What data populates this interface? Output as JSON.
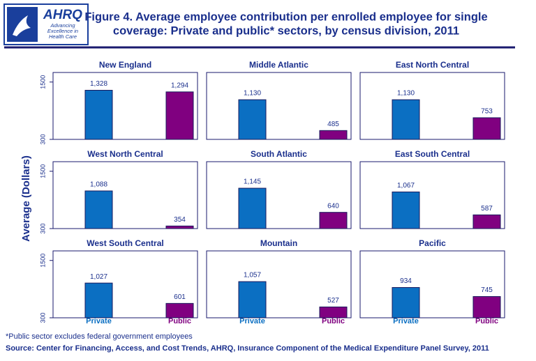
{
  "header": {
    "title": [
      "Figure 4. Average employee contribution per enrolled employee for single",
      "coverage: Private and public* sectors, by census division, 2011"
    ],
    "logo": {
      "name": "AHRQ",
      "tagline": [
        "Advancing",
        "Excellence in",
        "Health Care"
      ]
    }
  },
  "y_label": "Average (Dollars)",
  "categories": [
    "Private",
    "Public"
  ],
  "colors": [
    "#0b6fc2",
    "#800080"
  ],
  "chart_data": [
    {
      "type": "bar",
      "title": "New England",
      "values": [
        1328,
        1294
      ],
      "value_labels": [
        "1,328",
        "1,294"
      ],
      "ylim": [
        300,
        1700
      ],
      "yticks": [
        300,
        1500
      ]
    },
    {
      "type": "bar",
      "title": "Middle Atlantic",
      "values": [
        1130,
        485
      ],
      "value_labels": [
        "1,130",
        "485"
      ],
      "ylim": [
        300,
        1700
      ],
      "yticks": [
        300,
        1500
      ]
    },
    {
      "type": "bar",
      "title": "East North Central",
      "values": [
        1130,
        753
      ],
      "value_labels": [
        "1,130",
        "753"
      ],
      "ylim": [
        300,
        1700
      ],
      "yticks": [
        300,
        1500
      ]
    },
    {
      "type": "bar",
      "title": "West North Central",
      "values": [
        1088,
        354
      ],
      "value_labels": [
        "1,088",
        "354"
      ],
      "ylim": [
        300,
        1700
      ],
      "yticks": [
        300,
        1500
      ]
    },
    {
      "type": "bar",
      "title": "South Atlantic",
      "values": [
        1145,
        640
      ],
      "value_labels": [
        "1,145",
        "640"
      ],
      "ylim": [
        300,
        1700
      ],
      "yticks": [
        300,
        1500
      ]
    },
    {
      "type": "bar",
      "title": "East South Central",
      "values": [
        1067,
        587
      ],
      "value_labels": [
        "1,067",
        "587"
      ],
      "ylim": [
        300,
        1700
      ],
      "yticks": [
        300,
        1500
      ]
    },
    {
      "type": "bar",
      "title": "West South Central",
      "values": [
        1027,
        601
      ],
      "value_labels": [
        "1,027",
        "601"
      ],
      "ylim": [
        300,
        1700
      ],
      "yticks": [
        300,
        1500
      ]
    },
    {
      "type": "bar",
      "title": "Mountain",
      "values": [
        1057,
        527
      ],
      "value_labels": [
        "1,057",
        "527"
      ],
      "ylim": [
        300,
        1700
      ],
      "yticks": [
        300,
        1500
      ]
    },
    {
      "type": "bar",
      "title": "Pacific",
      "values": [
        934,
        745
      ],
      "value_labels": [
        "934",
        "745"
      ],
      "ylim": [
        300,
        1700
      ],
      "yticks": [
        300,
        1500
      ]
    }
  ],
  "footnote": "*Public sector excludes federal government employees",
  "source": "Source: Center for Financing, Access, and Cost Trends, AHRQ, Insurance Component of the Medical Expenditure Panel Survey, 2011"
}
